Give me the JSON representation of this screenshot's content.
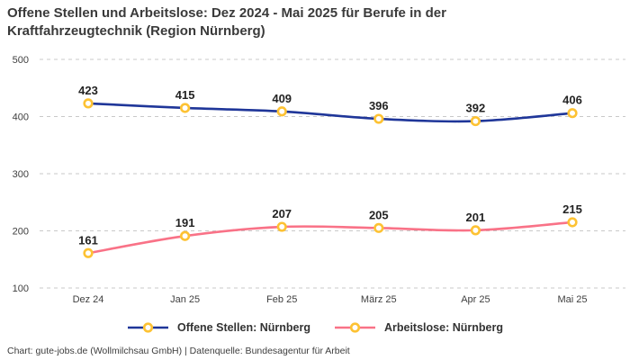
{
  "title": "Offene Stellen und Arbeitslose: Dez 2024 - Mai 2025 für Berufe in der Kraftfahrzeugtechnik (Region Nürnberg)",
  "footer": "Chart: gute-jobs.de (Wollmilchsau GmbH) | Datenquelle: Bundesagentur für Arbeit",
  "colors": {
    "series_offene": "#1f3699",
    "series_arbeitslose": "#f97287",
    "marker_ring": "#fdc233",
    "marker_fill": "#ffffff",
    "grid": "#c9c9c9",
    "tick_text": "#3f3f3f",
    "data_label_text": "#232323"
  },
  "chart_data": {
    "type": "line",
    "title": "Offene Stellen und Arbeitslose: Dez 2024 - Mai 2025 für Berufe in der Kraftfahrzeugtechnik (Region Nürnberg)",
    "categories": [
      "Dez 24",
      "Jan 25",
      "Feb 25",
      "März 25",
      "Apr 25",
      "Mai 25"
    ],
    "series": [
      {
        "name": "Offene Stellen: Nürnberg",
        "values": [
          423,
          415,
          409,
          396,
          392,
          406
        ],
        "color": "#1f3699"
      },
      {
        "name": "Arbeitslose: Nürnberg",
        "values": [
          161,
          191,
          207,
          205,
          201,
          215
        ],
        "color": "#f97287"
      }
    ],
    "ylim": [
      100,
      500
    ],
    "yticks": [
      100,
      200,
      300,
      400,
      500
    ],
    "grid": "horizontal-dashed",
    "legend_position": "bottom",
    "data_labels": true,
    "line_style": "smooth",
    "marker": {
      "shape": "circle",
      "ring_color": "#fdc233",
      "fill_color": "#ffffff"
    }
  },
  "legend": {
    "items": [
      {
        "label": "Offene Stellen: Nürnberg"
      },
      {
        "label": "Arbeitslose: Nürnberg"
      }
    ]
  }
}
